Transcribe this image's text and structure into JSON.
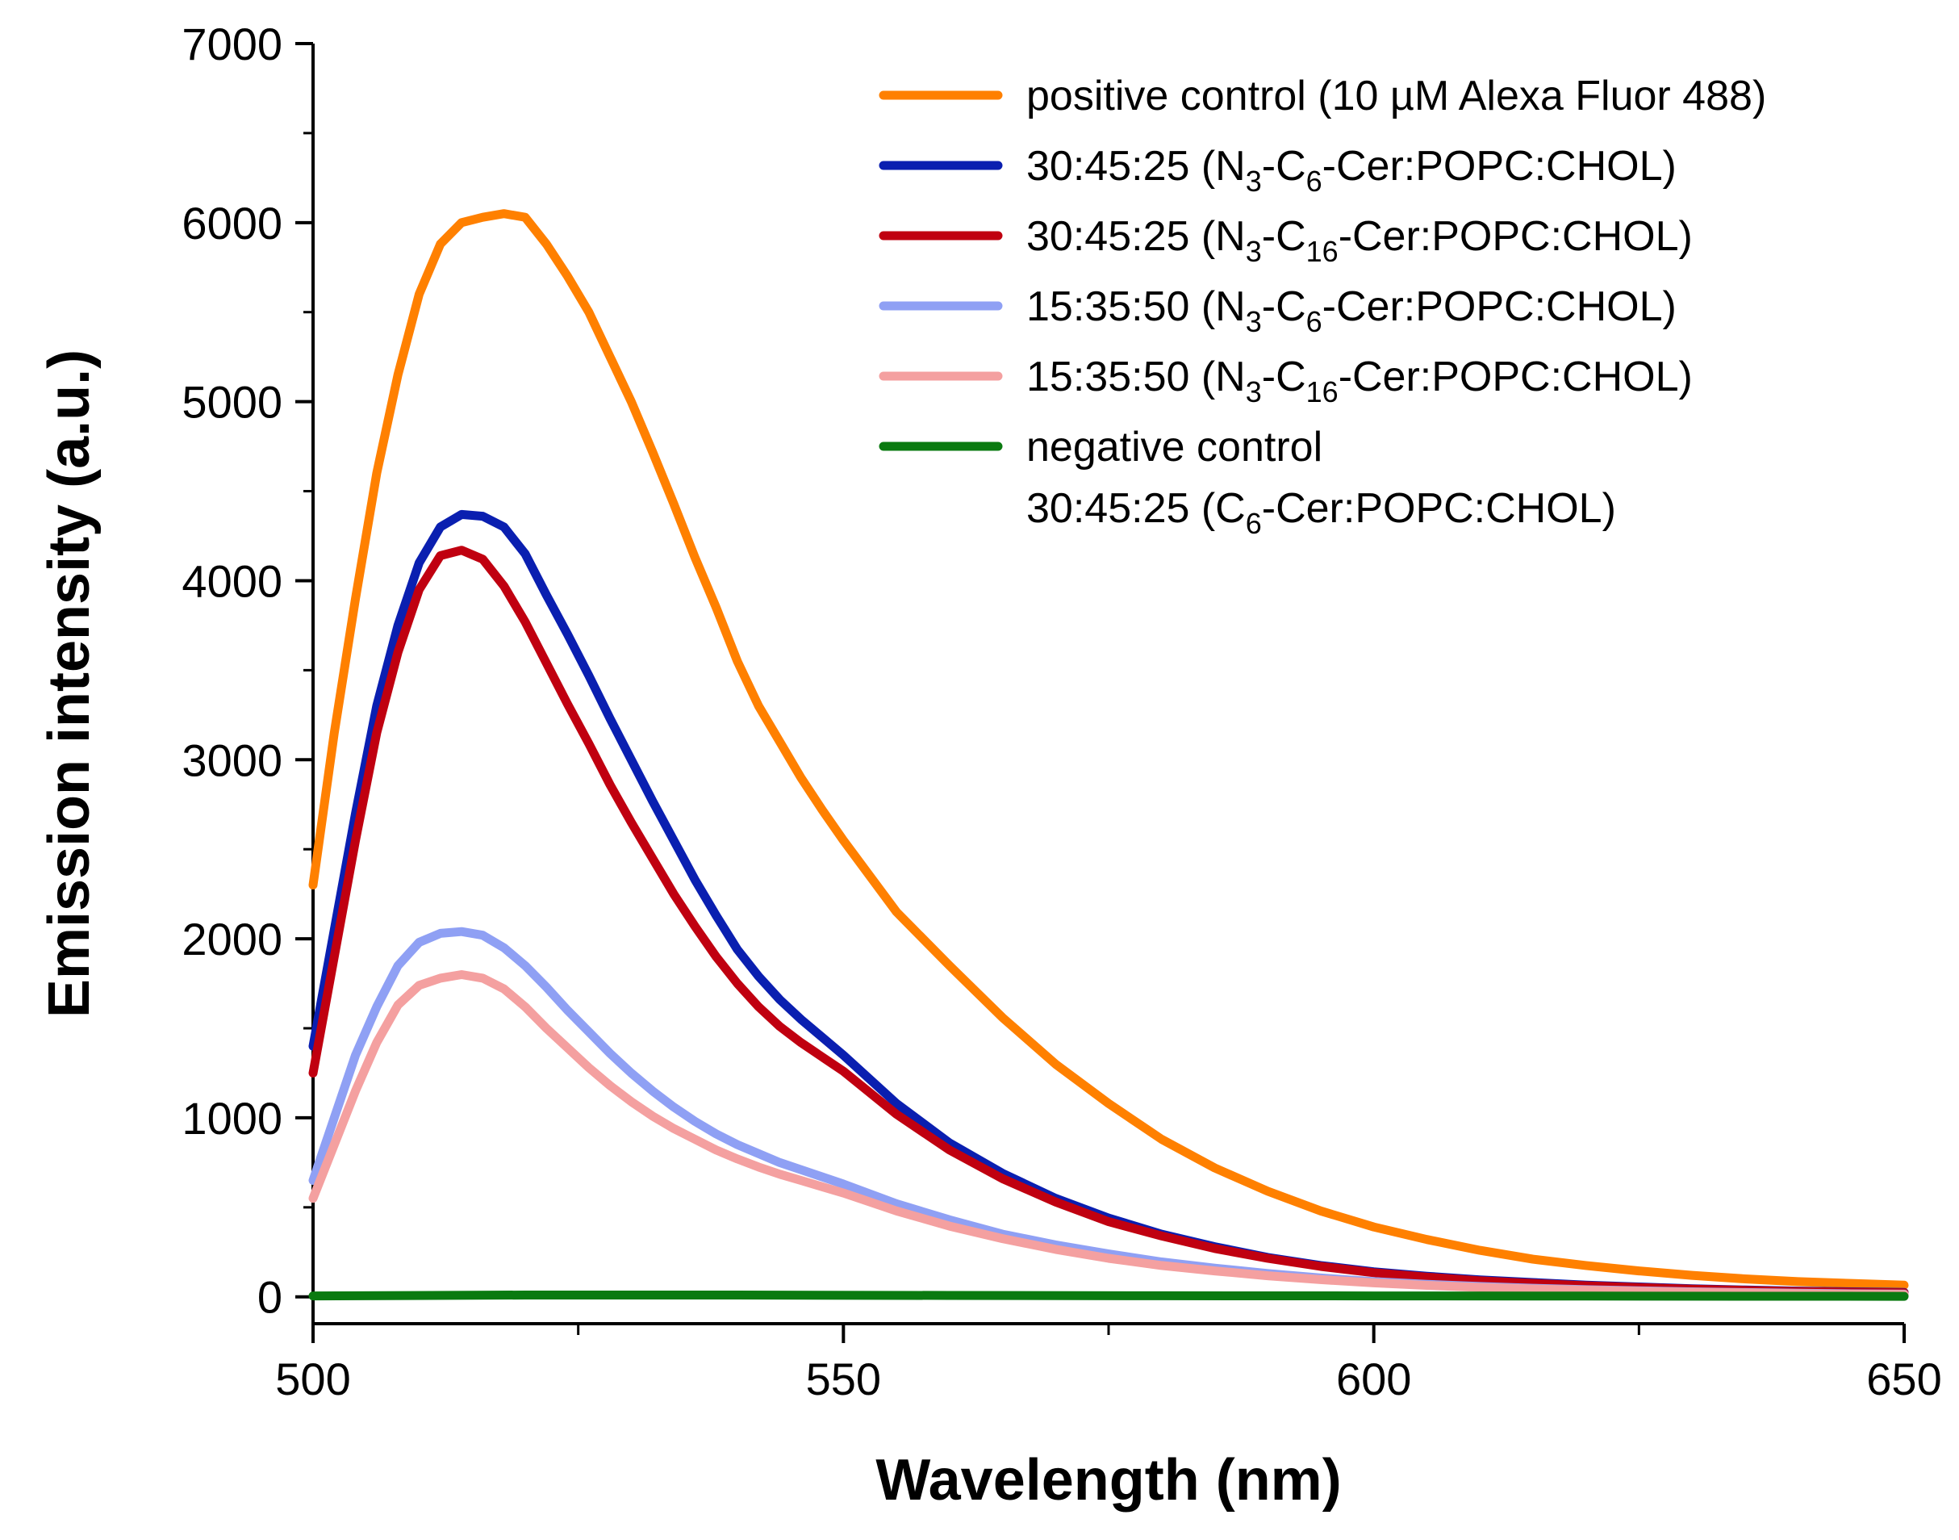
{
  "chart_data": {
    "type": "line",
    "title": "",
    "xlabel": "Wavelength (nm)",
    "ylabel": "Emission intensity (a.u.)",
    "xlim": [
      500,
      650
    ],
    "ylim": [
      -150,
      7000
    ],
    "xticks": [
      500,
      550,
      600,
      650
    ],
    "xtick_labels": [
      "500",
      "550",
      "600",
      "650"
    ],
    "xminor": [
      525,
      575,
      625
    ],
    "yticks": [
      0,
      1000,
      2000,
      3000,
      4000,
      5000,
      6000,
      7000
    ],
    "ytick_labels": [
      "0",
      "1000",
      "2000",
      "3000",
      "4000",
      "5000",
      "6000",
      "7000"
    ],
    "yminor": [
      500,
      1500,
      2500,
      3500,
      4500,
      5500,
      6500
    ],
    "legend_position": "top-right",
    "series": [
      {
        "name": "positive control (10 µM Alexa Fluor 488)",
        "legend_parts": [
          {
            "t": "positive control (10 µM Alexa Fluor 488)",
            "sub": false
          }
        ],
        "color": "#ff8000",
        "x": [
          500,
          502,
          504,
          506,
          508,
          510,
          512,
          514,
          516,
          518,
          520,
          522,
          524,
          526,
          528,
          530,
          532,
          534,
          536,
          538,
          540,
          542,
          544,
          546,
          548,
          550,
          555,
          560,
          565,
          570,
          575,
          580,
          585,
          590,
          595,
          600,
          605,
          610,
          615,
          620,
          625,
          630,
          635,
          640,
          645,
          650
        ],
        "y": [
          2300,
          3150,
          3900,
          4600,
          5150,
          5600,
          5880,
          6000,
          6030,
          6050,
          6030,
          5880,
          5700,
          5500,
          5250,
          5000,
          4720,
          4430,
          4130,
          3850,
          3550,
          3300,
          3100,
          2900,
          2720,
          2550,
          2150,
          1850,
          1560,
          1300,
          1080,
          880,
          720,
          590,
          480,
          390,
          320,
          260,
          210,
          175,
          145,
          120,
          100,
          85,
          75,
          65
        ]
      },
      {
        "name": "30:45:25 (N3-C6-Cer:POPC:CHOL)",
        "legend_parts": [
          {
            "t": "30:45:25 (N",
            "sub": false
          },
          {
            "t": "3",
            "sub": true
          },
          {
            "t": "-C",
            "sub": false
          },
          {
            "t": "6",
            "sub": true
          },
          {
            "t": "-Cer:POPC:CHOL)",
            "sub": false
          }
        ],
        "color": "#0a1fb0",
        "x": [
          500,
          502,
          504,
          506,
          508,
          510,
          512,
          514,
          516,
          518,
          520,
          522,
          524,
          526,
          528,
          530,
          532,
          534,
          536,
          538,
          540,
          542,
          544,
          546,
          548,
          550,
          555,
          560,
          565,
          570,
          575,
          580,
          585,
          590,
          595,
          600,
          605,
          610,
          615,
          620,
          625,
          630,
          635,
          640,
          645,
          650
        ],
        "y": [
          1400,
          2050,
          2700,
          3300,
          3750,
          4100,
          4300,
          4370,
          4360,
          4300,
          4150,
          3920,
          3700,
          3470,
          3230,
          3000,
          2770,
          2550,
          2330,
          2130,
          1940,
          1790,
          1660,
          1550,
          1450,
          1350,
          1080,
          860,
          690,
          550,
          440,
          350,
          280,
          220,
          175,
          140,
          115,
          95,
          80,
          65,
          55,
          45,
          38,
          32,
          28,
          25
        ]
      },
      {
        "name": "30:45:25 (N3-C16-Cer:POPC:CHOL)",
        "legend_parts": [
          {
            "t": "30:45:25 (N",
            "sub": false
          },
          {
            "t": "3",
            "sub": true
          },
          {
            "t": "-C",
            "sub": false
          },
          {
            "t": "16",
            "sub": true
          },
          {
            "t": "-Cer:POPC:CHOL)",
            "sub": false
          }
        ],
        "color": "#c00010",
        "x": [
          500,
          502,
          504,
          506,
          508,
          510,
          512,
          514,
          516,
          518,
          520,
          522,
          524,
          526,
          528,
          530,
          532,
          534,
          536,
          538,
          540,
          542,
          544,
          546,
          548,
          550,
          555,
          560,
          565,
          570,
          575,
          580,
          585,
          590,
          595,
          600,
          605,
          610,
          615,
          620,
          625,
          630,
          635,
          640,
          645,
          650
        ],
        "y": [
          1250,
          1900,
          2550,
          3150,
          3600,
          3950,
          4140,
          4170,
          4120,
          3970,
          3770,
          3540,
          3310,
          3090,
          2860,
          2650,
          2450,
          2250,
          2070,
          1900,
          1750,
          1620,
          1510,
          1420,
          1340,
          1260,
          1020,
          820,
          660,
          530,
          420,
          340,
          270,
          215,
          170,
          135,
          110,
          90,
          75,
          62,
          52,
          43,
          36,
          30,
          26,
          22
        ]
      },
      {
        "name": "15:35:50 (N3-C6-Cer:POPC:CHOL)",
        "legend_parts": [
          {
            "t": "15:35:50 (N",
            "sub": false
          },
          {
            "t": "3",
            "sub": true
          },
          {
            "t": "-C",
            "sub": false
          },
          {
            "t": "6",
            "sub": true
          },
          {
            "t": "-Cer:POPC:CHOL)",
            "sub": false
          }
        ],
        "color": "#8fa0f4",
        "x": [
          500,
          502,
          504,
          506,
          508,
          510,
          512,
          514,
          516,
          518,
          520,
          522,
          524,
          526,
          528,
          530,
          532,
          534,
          536,
          538,
          540,
          542,
          544,
          546,
          548,
          550,
          555,
          560,
          565,
          570,
          575,
          580,
          585,
          590,
          595,
          600,
          605,
          610,
          615,
          620,
          625,
          630,
          635,
          640,
          645,
          650
        ],
        "y": [
          650,
          1000,
          1350,
          1620,
          1850,
          1980,
          2030,
          2040,
          2020,
          1950,
          1850,
          1730,
          1600,
          1480,
          1360,
          1250,
          1150,
          1060,
          980,
          910,
          850,
          800,
          750,
          710,
          670,
          630,
          520,
          430,
          350,
          290,
          240,
          195,
          160,
          130,
          105,
          85,
          70,
          58,
          48,
          40,
          34,
          28,
          24,
          20,
          17,
          15
        ]
      },
      {
        "name": "15:35:50 (N3-C16-Cer:POPC:CHOL)",
        "legend_parts": [
          {
            "t": "15:35:50 (N",
            "sub": false
          },
          {
            "t": "3",
            "sub": true
          },
          {
            "t": "-C",
            "sub": false
          },
          {
            "t": "16",
            "sub": true
          },
          {
            "t": "-Cer:POPC:CHOL)",
            "sub": false
          }
        ],
        "color": "#f4a0a0",
        "x": [
          500,
          502,
          504,
          506,
          508,
          510,
          512,
          514,
          516,
          518,
          520,
          522,
          524,
          526,
          528,
          530,
          532,
          534,
          536,
          538,
          540,
          542,
          544,
          546,
          548,
          550,
          555,
          560,
          565,
          570,
          575,
          580,
          585,
          590,
          595,
          600,
          605,
          610,
          615,
          620,
          625,
          630,
          635,
          640,
          645,
          650
        ],
        "y": [
          550,
          850,
          1150,
          1420,
          1630,
          1740,
          1780,
          1800,
          1780,
          1720,
          1620,
          1500,
          1390,
          1280,
          1180,
          1090,
          1010,
          940,
          880,
          820,
          770,
          725,
          685,
          650,
          615,
          580,
          480,
          395,
          325,
          265,
          215,
          175,
          145,
          118,
          96,
          78,
          64,
          53,
          44,
          37,
          31,
          26,
          22,
          18,
          15,
          13
        ]
      },
      {
        "name": "negative control 30:45:25 (C6-Cer:POPC:CHOL)",
        "legend_parts": [
          {
            "t": "negative control",
            "sub": false
          }
        ],
        "legend_parts_line2": [
          {
            "t": "30:45:25 (C",
            "sub": false
          },
          {
            "t": "6",
            "sub": true
          },
          {
            "t": "-Cer:POPC:CHOL)",
            "sub": false
          }
        ],
        "color": "#0a7a10",
        "x": [
          500,
          520,
          540,
          560,
          580,
          600,
          620,
          650
        ],
        "y": [
          5,
          10,
          10,
          8,
          6,
          5,
          4,
          3
        ]
      }
    ]
  }
}
